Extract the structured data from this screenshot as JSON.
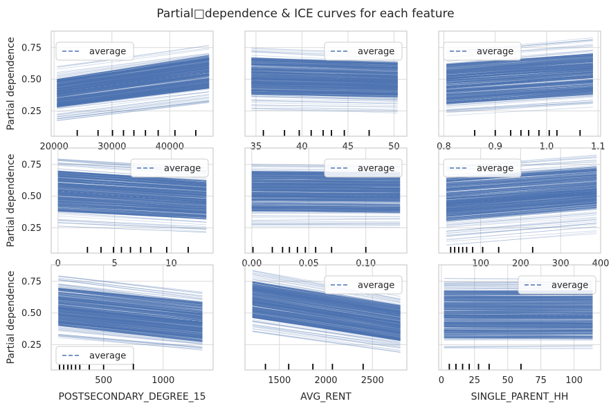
{
  "figure": {
    "title": "Partial□dependence & ICE curves for each feature"
  },
  "chart_data": [
    {
      "type": "line",
      "xlabel": "",
      "ylabel": "Partial dependence",
      "xlim": [
        19500,
        47500
      ],
      "ylim": [
        0.05,
        0.88
      ],
      "xticks": [
        20000,
        30000,
        40000
      ],
      "xtick_labels": [
        "20000",
        "30000",
        "40000"
      ],
      "yticks": [
        0.25,
        0.5,
        0.75
      ],
      "ytick_labels": [
        "0.25",
        "0.50",
        "0.75"
      ],
      "grid": true,
      "legend": {
        "entries": [
          "average"
        ],
        "placement": "upper-left"
      },
      "ice_x_range": [
        20500,
        46800
      ],
      "ice_start_range": [
        0.16,
        0.6
      ],
      "ice_end_range": [
        0.3,
        0.76
      ],
      "dense_start_range": [
        0.28,
        0.5
      ],
      "dense_end_range": [
        0.43,
        0.68
      ],
      "deciles": [
        24000,
        27600,
        30100,
        32000,
        33800,
        35800,
        38000,
        40900,
        44500
      ],
      "series": [
        {
          "name": "average",
          "x": [
            20500,
            46800
          ],
          "y": [
            0.39,
            0.56
          ]
        }
      ]
    },
    {
      "type": "line",
      "xlabel": "",
      "ylabel": "",
      "xlim": [
        33.8,
        51.4
      ],
      "ylim": [
        0.05,
        0.88
      ],
      "xticks": [
        35,
        40,
        45,
        50
      ],
      "xtick_labels": [
        "35",
        "40",
        "45",
        "50"
      ],
      "yticks": [
        0.25,
        0.5,
        0.75
      ],
      "ytick_labels": [
        "",
        "",
        ""
      ],
      "grid": true,
      "legend": {
        "entries": [
          "average"
        ],
        "placement": "upper-right"
      },
      "ice_x_range": [
        34.5,
        50.4
      ],
      "ice_start_range": [
        0.25,
        0.75
      ],
      "ice_end_range": [
        0.23,
        0.7
      ],
      "dense_start_range": [
        0.38,
        0.67
      ],
      "dense_end_range": [
        0.36,
        0.63
      ],
      "deciles": [
        35.8,
        38.1,
        39.7,
        41.0,
        42.3,
        43.2,
        44.6,
        47.3
      ],
      "series": [
        {
          "name": "average",
          "x": [
            34.5,
            50.4
          ],
          "y": [
            0.5,
            0.49
          ]
        }
      ]
    },
    {
      "type": "line",
      "xlabel": "",
      "ylabel": "",
      "xlim": [
        0.79,
        1.105
      ],
      "ylim": [
        0.05,
        0.88
      ],
      "xticks": [
        0.8,
        0.9,
        1.0,
        1.1
      ],
      "xtick_labels": [
        "0.8",
        "0.9",
        "1.0",
        "1.1"
      ],
      "yticks": [
        0.25,
        0.5,
        0.75
      ],
      "ytick_labels": [
        "",
        "",
        ""
      ],
      "grid": true,
      "legend": {
        "entries": [
          "average"
        ],
        "placement": "upper-left"
      },
      "ice_x_range": [
        0.805,
        1.09
      ],
      "ice_start_range": [
        0.2,
        0.72
      ],
      "ice_end_range": [
        0.27,
        0.82
      ],
      "dense_start_range": [
        0.3,
        0.62
      ],
      "dense_end_range": [
        0.38,
        0.7
      ],
      "deciles": [
        0.86,
        0.9,
        0.93,
        0.95,
        0.965,
        0.985,
        1.005,
        1.02,
        1.065
      ],
      "series": [
        {
          "name": "average",
          "x": [
            0.805,
            1.09
          ],
          "y": [
            0.43,
            0.53
          ]
        }
      ]
    },
    {
      "type": "line",
      "xlabel": "",
      "ylabel": "Partial dependence",
      "xlim": [
        -0.6,
        13.7
      ],
      "ylim": [
        0.05,
        0.88
      ],
      "xticks": [
        0,
        5,
        10
      ],
      "xtick_labels": [
        "0",
        "5",
        "10"
      ],
      "yticks": [
        0.25,
        0.5,
        0.75
      ],
      "ytick_labels": [
        "0.25",
        "0.50",
        "0.75"
      ],
      "grid": true,
      "legend": {
        "entries": [
          "average"
        ],
        "placement": "upper-right"
      },
      "ice_x_range": [
        0.0,
        13.1
      ],
      "ice_start_range": [
        0.26,
        0.8
      ],
      "ice_end_range": [
        0.2,
        0.72
      ],
      "dense_start_range": [
        0.38,
        0.7
      ],
      "dense_end_range": [
        0.32,
        0.62
      ],
      "deciles": [
        2.6,
        3.8,
        4.9,
        5.6,
        6.4,
        7.3,
        8.2,
        9.6,
        11.5
      ],
      "series": [
        {
          "name": "average",
          "x": [
            0.0,
            13.1
          ],
          "y": [
            0.54,
            0.45
          ]
        }
      ]
    },
    {
      "type": "line",
      "xlabel": "",
      "ylabel": "",
      "xlim": [
        -0.006,
        0.136
      ],
      "ylim": [
        0.05,
        0.88
      ],
      "xticks": [
        0.0,
        0.05,
        0.1
      ],
      "xtick_labels": [
        "0.00",
        "0.05",
        "0.10"
      ],
      "yticks": [
        0.25,
        0.5,
        0.75
      ],
      "ytick_labels": [
        "",
        "",
        ""
      ],
      "grid": true,
      "legend": {
        "entries": [
          "average"
        ],
        "placement": "upper-right"
      },
      "ice_x_range": [
        0.0,
        0.13
      ],
      "ice_start_range": [
        0.25,
        0.76
      ],
      "ice_end_range": [
        0.25,
        0.74
      ],
      "dense_start_range": [
        0.38,
        0.7
      ],
      "dense_end_range": [
        0.37,
        0.69
      ],
      "deciles": [
        0.001,
        0.018,
        0.027,
        0.033,
        0.04,
        0.047,
        0.056,
        0.07,
        0.1
      ],
      "series": [
        {
          "name": "average",
          "x": [
            0.0,
            0.13
          ],
          "y": [
            0.5,
            0.5
          ]
        }
      ]
    },
    {
      "type": "line",
      "xlabel": "",
      "ylabel": "",
      "xlim": [
        -5,
        400
      ],
      "ylim": [
        0.05,
        0.88
      ],
      "xticks": [
        100,
        200,
        300,
        400
      ],
      "xtick_labels": [
        "100",
        "200",
        "300",
        "400"
      ],
      "yticks": [
        0.25,
        0.5,
        0.75
      ],
      "ytick_labels": [
        "",
        "",
        ""
      ],
      "grid": true,
      "legend": {
        "entries": [
          "average"
        ],
        "placement": "upper-left"
      },
      "ice_x_range": [
        14,
        390
      ],
      "ice_start_range": [
        0.1,
        0.74
      ],
      "ice_end_range": [
        0.2,
        0.82
      ],
      "dense_start_range": [
        0.3,
        0.64
      ],
      "dense_end_range": [
        0.4,
        0.72
      ],
      "deciles": [
        25,
        35,
        45,
        55,
        65,
        80,
        105,
        145,
        230
      ],
      "series": [
        {
          "name": "average",
          "x": [
            14,
            390
          ],
          "y": [
            0.44,
            0.54
          ]
        }
      ]
    },
    {
      "type": "line",
      "xlabel": "POSTSECONDARY_DEGREE_15",
      "ylabel": "Partial dependence",
      "xlim": [
        60,
        1420
      ],
      "ylim": [
        0.05,
        0.88
      ],
      "xticks": [
        500,
        1000
      ],
      "xtick_labels": [
        "500",
        "1000"
      ],
      "yticks": [
        0.25,
        0.5,
        0.75
      ],
      "ytick_labels": [
        "0.25",
        "0.50",
        "0.75"
      ],
      "grid": true,
      "legend": {
        "entries": [
          "average"
        ],
        "placement": "lower-left"
      },
      "ice_x_range": [
        120,
        1330
      ],
      "ice_start_range": [
        0.3,
        0.8
      ],
      "ice_end_range": [
        0.2,
        0.66
      ],
      "dense_start_range": [
        0.4,
        0.7
      ],
      "dense_end_range": [
        0.28,
        0.58
      ],
      "deciles": [
        130,
        165,
        200,
        230,
        265,
        300,
        380,
        500,
        750
      ],
      "series": [
        {
          "name": "average",
          "x": [
            120,
            1330
          ],
          "y": [
            0.54,
            0.43
          ]
        }
      ]
    },
    {
      "type": "line",
      "xlabel": "AVG_RENT",
      "ylabel": "",
      "xlim": [
        1130,
        2870
      ],
      "ylim": [
        0.05,
        0.88
      ],
      "xticks": [
        1500,
        2000,
        2500
      ],
      "xtick_labels": [
        "1500",
        "2000",
        "2500"
      ],
      "yticks": [
        0.25,
        0.5,
        0.75
      ],
      "ytick_labels": [
        "",
        "",
        ""
      ],
      "grid": true,
      "legend": {
        "entries": [
          "average"
        ],
        "placement": "upper-right"
      },
      "ice_x_range": [
        1210,
        2800
      ],
      "ice_start_range": [
        0.34,
        0.84
      ],
      "ice_end_range": [
        0.18,
        0.62
      ],
      "dense_start_range": [
        0.46,
        0.75
      ],
      "dense_end_range": [
        0.28,
        0.56
      ],
      "deciles": [
        1350,
        1600,
        1860,
        2070,
        2400
      ],
      "series": [
        {
          "name": "average",
          "x": [
            1210,
            2800
          ],
          "y": [
            0.58,
            0.43
          ]
        }
      ]
    },
    {
      "type": "line",
      "xlabel": "SINGLE_PARENT_HH",
      "ylabel": "",
      "xlim": [
        -2,
        120
      ],
      "ylim": [
        0.05,
        0.88
      ],
      "xticks": [
        0,
        25,
        50,
        75,
        100
      ],
      "xtick_labels": [
        "0",
        "25",
        "50",
        "75",
        "100"
      ],
      "yticks": [
        0.25,
        0.5,
        0.75
      ],
      "ytick_labels": [
        "",
        "",
        ""
      ],
      "grid": true,
      "legend": {
        "entries": [
          "average"
        ],
        "placement": "upper-right"
      },
      "ice_x_range": [
        2,
        114
      ],
      "ice_start_range": [
        0.22,
        0.78
      ],
      "ice_end_range": [
        0.22,
        0.78
      ],
      "dense_start_range": [
        0.3,
        0.68
      ],
      "dense_end_range": [
        0.3,
        0.68
      ],
      "deciles": [
        6,
        11,
        16,
        21,
        28,
        36,
        60
      ],
      "series": [
        {
          "name": "average",
          "x": [
            2,
            114
          ],
          "y": [
            0.48,
            0.48
          ]
        }
      ]
    }
  ]
}
